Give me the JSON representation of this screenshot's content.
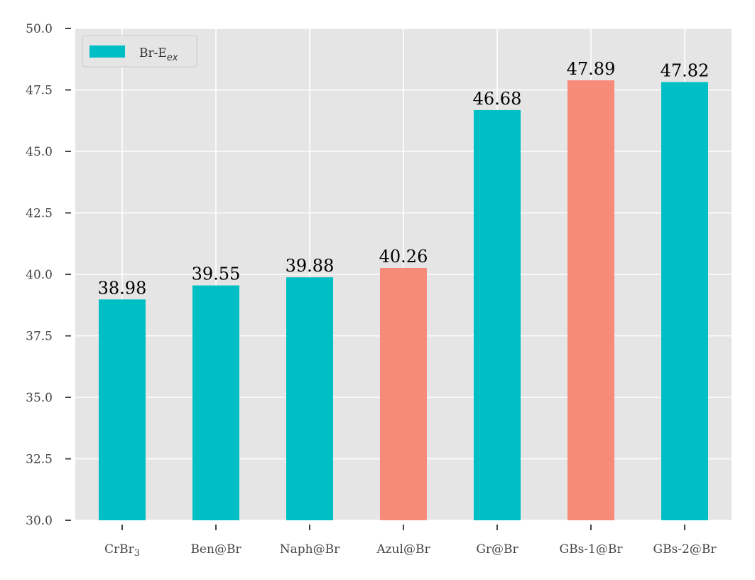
{
  "chart_data": {
    "type": "bar",
    "categories": [
      "CrBr",
      "Ben@Br",
      "Naph@Br",
      "Azul@Br",
      "Gr@Br",
      "GBs-1@Br",
      "GBs-2@Br"
    ],
    "category_subscripts": [
      "3",
      "",
      "",
      "",
      "",
      "",
      ""
    ],
    "values": [
      38.98,
      39.55,
      39.88,
      40.26,
      46.68,
      47.89,
      47.82
    ],
    "value_labels": [
      "38.98",
      "39.55",
      "39.88",
      "40.26",
      "46.68",
      "47.89",
      "47.82"
    ],
    "bar_colors": [
      "#00bfc4",
      "#00bfc4",
      "#00bfc4",
      "#f68b7a",
      "#00bfc4",
      "#f68b7a",
      "#00bfc4"
    ],
    "ylim": [
      30.0,
      50.0
    ],
    "yticks": [
      30.0,
      32.5,
      35.0,
      37.5,
      40.0,
      42.5,
      45.0,
      47.5,
      50.0
    ],
    "ytick_labels": [
      "30.0",
      "32.5",
      "35.0",
      "37.5",
      "40.0",
      "42.5",
      "45.0",
      "47.5",
      "50.0"
    ],
    "grid": true,
    "background_color": "#e5e5e5",
    "legend": {
      "placement": "top-left",
      "label_main": "Br-E",
      "label_sub": "ex",
      "color": "#00bfc4"
    }
  }
}
